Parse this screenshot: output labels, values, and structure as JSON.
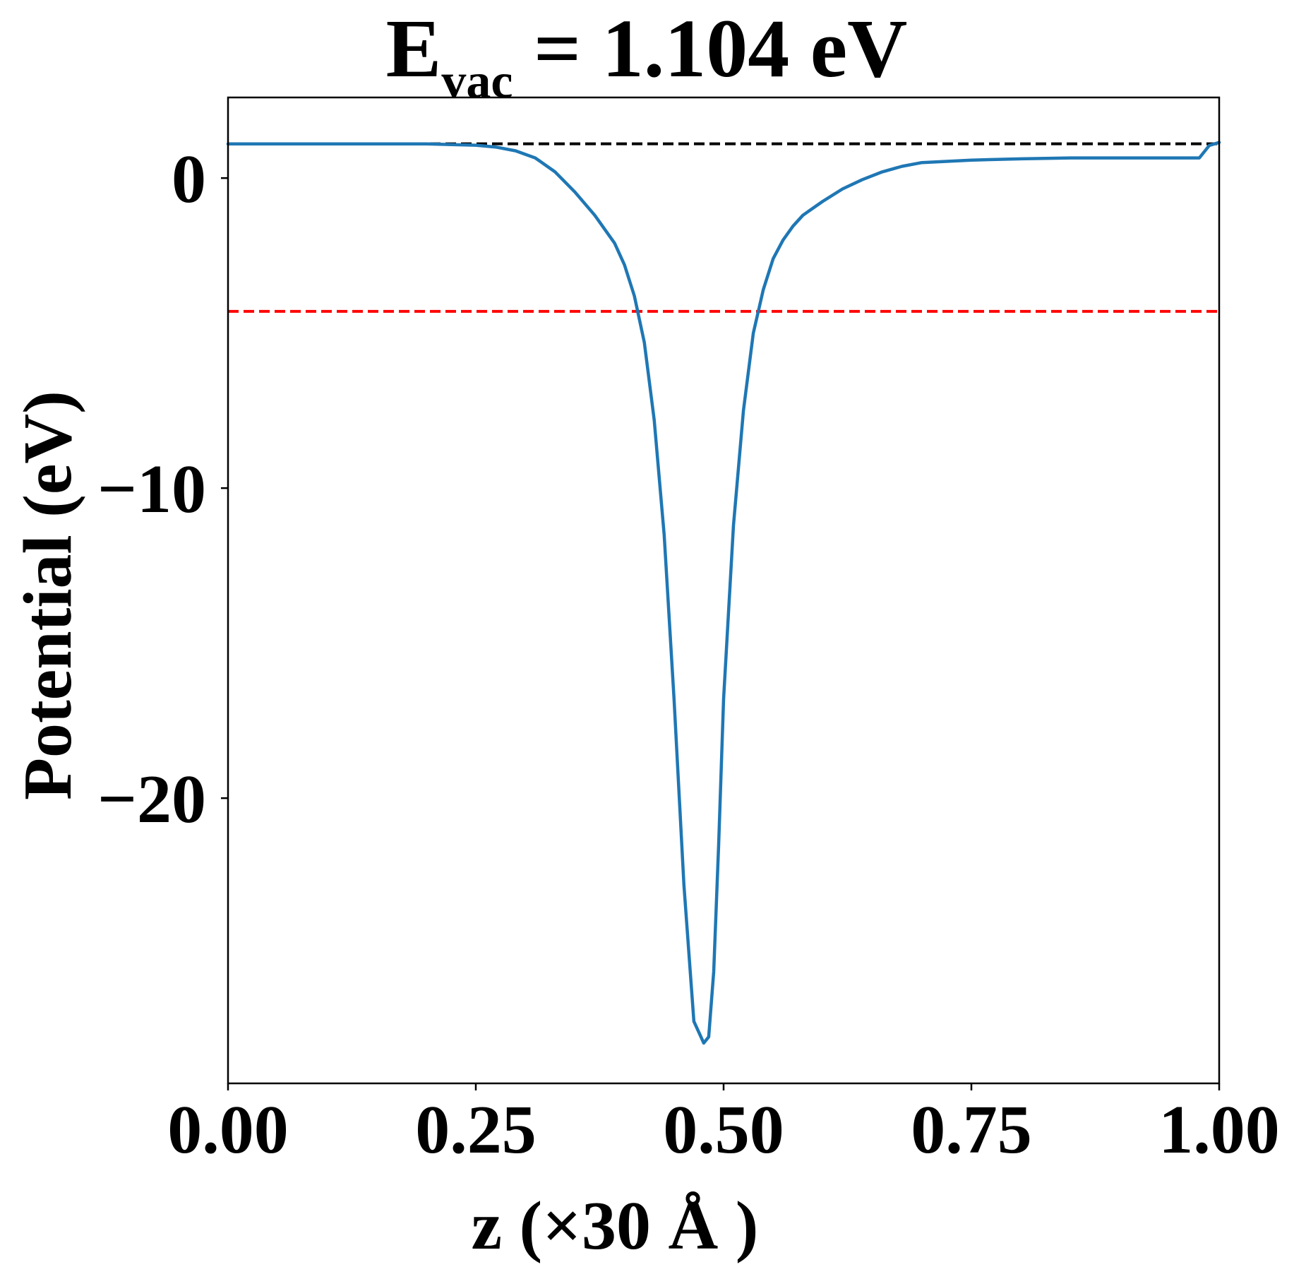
{
  "chart_data": {
    "type": "line",
    "title": {
      "main": "E",
      "subscript": "vac",
      "rest": " = 1.104 eV"
    },
    "xlabel": "z (×30 Å )",
    "ylabel": "Potential (eV)",
    "xlim": [
      0.0,
      1.0
    ],
    "ylim": [
      -29.2,
      2.6
    ],
    "x_ticks": [
      {
        "value": 0.0,
        "label": "0.00"
      },
      {
        "value": 0.25,
        "label": "0.25"
      },
      {
        "value": 0.5,
        "label": "0.50"
      },
      {
        "value": 0.75,
        "label": "0.75"
      },
      {
        "value": 1.0,
        "label": "1.00"
      }
    ],
    "y_ticks": [
      {
        "value": 0,
        "label": "0"
      },
      {
        "value": -10,
        "label": "−10"
      },
      {
        "value": -20,
        "label": "−20"
      }
    ],
    "grid": false,
    "reference_lines": [
      {
        "y": 1.104,
        "color": "#000000",
        "style": "dashed"
      },
      {
        "y": -4.3,
        "color": "#ff0000",
        "style": "dashed"
      }
    ],
    "series": [
      {
        "color": "#1f77b4",
        "x": [
          0.0,
          0.05,
          0.1,
          0.15,
          0.2,
          0.25,
          0.27,
          0.29,
          0.31,
          0.33,
          0.35,
          0.37,
          0.39,
          0.4,
          0.41,
          0.42,
          0.43,
          0.44,
          0.45,
          0.46,
          0.47,
          0.48,
          0.485,
          0.49,
          0.495,
          0.5,
          0.51,
          0.52,
          0.53,
          0.54,
          0.55,
          0.56,
          0.57,
          0.58,
          0.6,
          0.62,
          0.64,
          0.66,
          0.68,
          0.7,
          0.75,
          0.8,
          0.85,
          0.9,
          0.95,
          0.98,
          0.99,
          1.0
        ],
        "y": [
          1.1,
          1.1,
          1.1,
          1.1,
          1.1,
          1.06,
          1.0,
          0.88,
          0.65,
          0.2,
          -0.45,
          -1.2,
          -2.1,
          -2.8,
          -3.8,
          -5.3,
          -7.8,
          -11.5,
          -16.8,
          -22.8,
          -27.2,
          -27.9,
          -27.7,
          -25.6,
          -21.5,
          -16.8,
          -11.2,
          -7.5,
          -5.0,
          -3.6,
          -2.6,
          -2.0,
          -1.55,
          -1.2,
          -0.75,
          -0.35,
          -0.05,
          0.2,
          0.38,
          0.5,
          0.58,
          0.62,
          0.65,
          0.65,
          0.65,
          0.65,
          1.05,
          1.15
        ]
      }
    ]
  }
}
